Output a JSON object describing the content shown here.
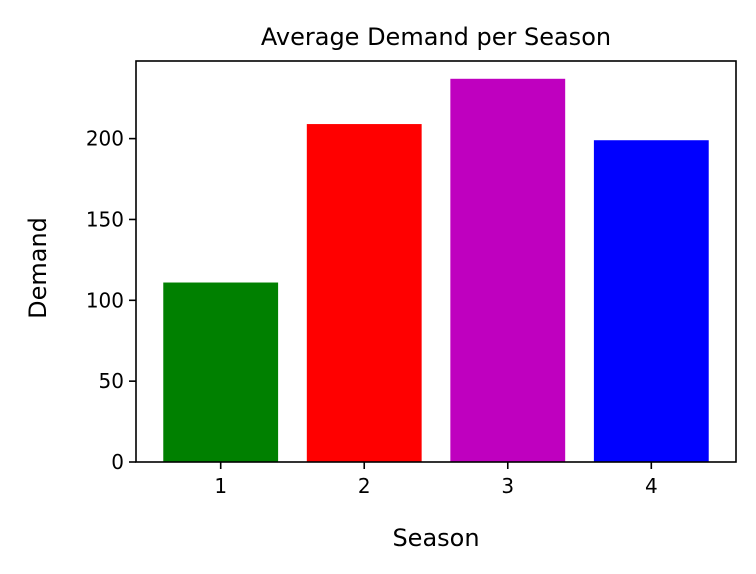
{
  "chart_data": {
    "type": "bar",
    "title": "Average Demand per Season",
    "xlabel": "Season",
    "ylabel": "Demand",
    "categories": [
      "1",
      "2",
      "3",
      "4"
    ],
    "values": [
      111,
      209,
      237,
      199
    ],
    "colors": [
      "#008000",
      "#ff0000",
      "#bf00bf",
      "#0000ff"
    ],
    "ylim": [
      0,
      248
    ],
    "yticks": [
      0,
      50,
      100,
      150,
      200
    ],
    "grid": false,
    "legend": "none"
  }
}
